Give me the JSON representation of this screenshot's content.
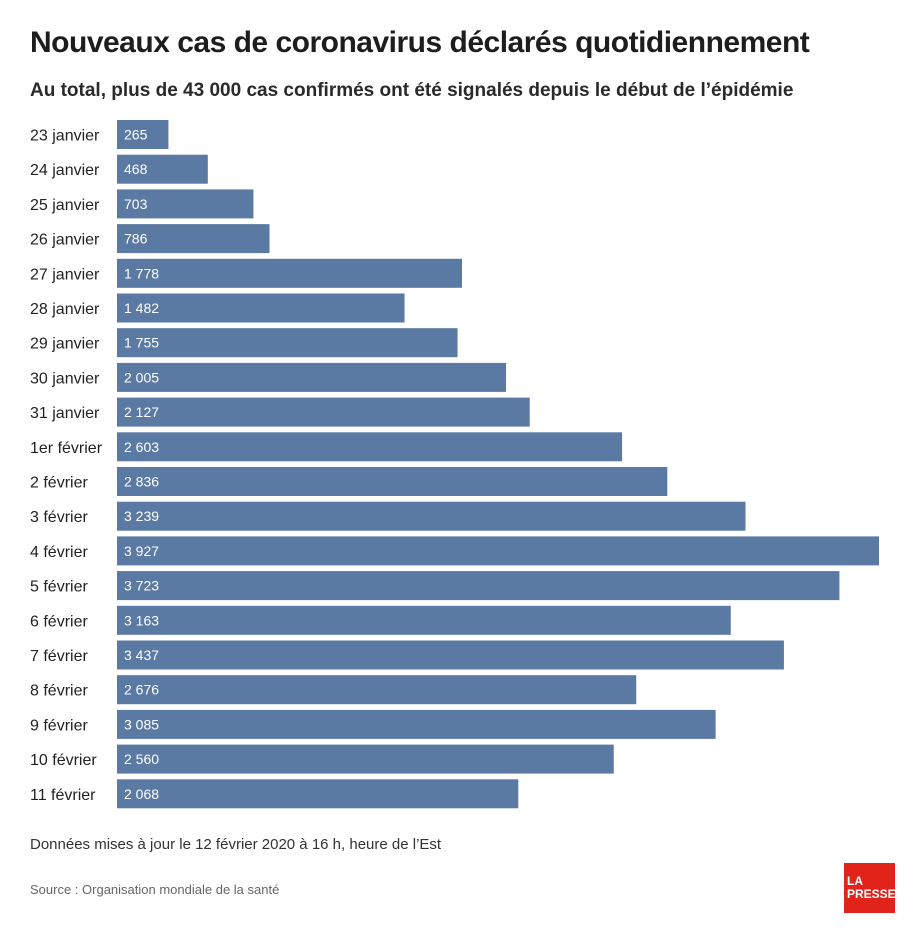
{
  "header": {
    "title": "Nouveaux cas de coronavirus déclarés quotidiennement",
    "subtitle": "Au total, plus de 43 000 cas confirmés ont été signalés depuis le début de l’épidémie"
  },
  "footer": {
    "note": "Données mises à jour le 12 février 2020 à 16 h, heure de l’Est",
    "source": "Source : Organisation mondiale de la santé"
  },
  "logo": {
    "line1": "LA",
    "line2": "PRESSE",
    "color": "#e2231a"
  },
  "chart_data": {
    "type": "bar",
    "orientation": "horizontal",
    "bar_color": "#5b7aa3",
    "categories": [
      "23 janvier",
      "24 janvier",
      "25 janvier",
      "26 janvier",
      "27 janvier",
      "28 janvier",
      "29 janvier",
      "30 janvier",
      "31 janvier",
      "1er février",
      "2 février",
      "3 février",
      "4 février",
      "5 février",
      "6 février",
      "7 février",
      "8 février",
      "9 février",
      "10 février",
      "11 février"
    ],
    "values": [
      265,
      468,
      703,
      786,
      1778,
      1482,
      1755,
      2005,
      2127,
      2603,
      2836,
      3239,
      3927,
      3723,
      3163,
      3437,
      2676,
      3085,
      2560,
      2068
    ],
    "value_labels": [
      "265",
      "468",
      "703",
      "786",
      "1 778",
      "1 482",
      "1 755",
      "2 005",
      "2 127",
      "2 603",
      "2 836",
      "3 239",
      "3 927",
      "3 723",
      "3 163",
      "3 437",
      "2 676",
      "3 085",
      "2 560",
      "2 068"
    ],
    "xlim": [
      0,
      3927
    ],
    "grid": false
  }
}
